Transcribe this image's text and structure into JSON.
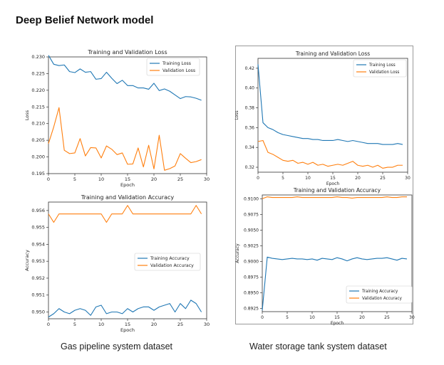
{
  "page": {
    "heading": "Deep Belief Network model",
    "captions": [
      "Gas pipeline system dataset",
      "Water storage tank system dataset"
    ]
  },
  "colors": {
    "training": "#1f77b4",
    "validation": "#ff7f0e",
    "axis": "#333333"
  },
  "chart_data": [
    {
      "id": "gas-loss",
      "type": "line",
      "title": "Training and Validation Loss",
      "xlabel": "Epoch",
      "ylabel": "Loss",
      "xlim": [
        0,
        30
      ],
      "ylim": [
        0.195,
        0.23
      ],
      "xticks": [
        0,
        5,
        10,
        15,
        20,
        25,
        30
      ],
      "yticks": [
        0.195,
        0.2,
        0.205,
        0.21,
        0.215,
        0.22,
        0.225,
        0.23
      ],
      "ytick_labels": [
        "0.195",
        "0.200",
        "0.205",
        "0.210",
        "0.215",
        "0.220",
        "0.225",
        "0.230"
      ],
      "legend": "top-right",
      "grid": false,
      "x": [
        0,
        1,
        2,
        3,
        4,
        5,
        6,
        7,
        8,
        9,
        10,
        11,
        12,
        13,
        14,
        15,
        16,
        17,
        18,
        19,
        20,
        21,
        22,
        23,
        24,
        25,
        26,
        27,
        28,
        29
      ],
      "series": [
        {
          "name": "Training Loss",
          "color": "training",
          "values": [
            0.2305,
            0.2278,
            0.2274,
            0.2276,
            0.2256,
            0.2253,
            0.2264,
            0.2254,
            0.2256,
            0.2233,
            0.2235,
            0.2254,
            0.2236,
            0.222,
            0.223,
            0.2214,
            0.2214,
            0.2207,
            0.2207,
            0.2203,
            0.2221,
            0.2199,
            0.2204,
            0.2197,
            0.2186,
            0.2175,
            0.2181,
            0.218,
            0.2176,
            0.217
          ]
        },
        {
          "name": "Validation Loss",
          "color": "validation",
          "values": [
            0.204,
            0.209,
            0.2148,
            0.202,
            0.201,
            0.2012,
            0.2055,
            0.2003,
            0.2028,
            0.2027,
            0.1997,
            0.2033,
            0.2023,
            0.2007,
            0.2012,
            0.1978,
            0.1979,
            0.2027,
            0.197,
            0.2035,
            0.1964,
            0.2065,
            0.196,
            0.1965,
            0.1973,
            0.201,
            0.1996,
            0.1983,
            0.1986,
            0.1992
          ]
        }
      ]
    },
    {
      "id": "gas-acc",
      "type": "line",
      "title": "Training and Validation Accuracy",
      "xlabel": "Epoch",
      "ylabel": "Accuracy",
      "xlim": [
        0,
        30
      ],
      "ylim": [
        0.9496,
        0.9565
      ],
      "xticks": [
        0,
        5,
        10,
        15,
        20,
        25,
        30
      ],
      "yticks": [
        0.95,
        0.951,
        0.952,
        0.953,
        0.954,
        0.955,
        0.956
      ],
      "ytick_labels": [
        "0.950",
        "0.951",
        "0.952",
        "0.953",
        "0.954",
        "0.955",
        "0.956"
      ],
      "legend": "center-right",
      "grid": false,
      "x": [
        0,
        1,
        2,
        3,
        4,
        5,
        6,
        7,
        8,
        9,
        10,
        11,
        12,
        13,
        14,
        15,
        16,
        17,
        18,
        19,
        20,
        21,
        22,
        23,
        24,
        25,
        26,
        27,
        28,
        29
      ],
      "series": [
        {
          "name": "Training Accuracy",
          "color": "training",
          "values": [
            0.9497,
            0.9499,
            0.9502,
            0.95,
            0.9499,
            0.9501,
            0.9502,
            0.9501,
            0.9498,
            0.9503,
            0.9504,
            0.9499,
            0.95,
            0.95,
            0.9499,
            0.9502,
            0.95,
            0.9502,
            0.9503,
            0.9503,
            0.9501,
            0.9503,
            0.9504,
            0.9505,
            0.95,
            0.9505,
            0.9502,
            0.9507,
            0.9505,
            0.95
          ]
        },
        {
          "name": "Validation Accuracy",
          "color": "validation",
          "values": [
            0.9558,
            0.9553,
            0.9558,
            0.9558,
            0.9558,
            0.9558,
            0.9558,
            0.9558,
            0.9558,
            0.9558,
            0.9558,
            0.9553,
            0.9558,
            0.9558,
            0.9558,
            0.9563,
            0.9558,
            0.9558,
            0.9558,
            0.9558,
            0.9558,
            0.9558,
            0.9558,
            0.9558,
            0.9558,
            0.9558,
            0.9558,
            0.9558,
            0.9563,
            0.9558
          ]
        }
      ]
    },
    {
      "id": "water-loss",
      "type": "line",
      "title": "Training and Validation Loss",
      "xlabel": "Epoch",
      "ylabel": "Loss",
      "xlim": [
        0,
        30
      ],
      "ylim": [
        0.315,
        0.43
      ],
      "xticks": [
        0,
        5,
        10,
        15,
        20,
        25,
        30
      ],
      "yticks": [
        0.32,
        0.34,
        0.36,
        0.38,
        0.4,
        0.42
      ],
      "ytick_labels": [
        "0.32",
        "0.34",
        "0.36",
        "0.38",
        "0.40",
        "0.42"
      ],
      "legend": "top-right",
      "grid": false,
      "x": [
        0,
        1,
        2,
        3,
        4,
        5,
        6,
        7,
        8,
        9,
        10,
        11,
        12,
        13,
        14,
        15,
        16,
        17,
        18,
        19,
        20,
        21,
        22,
        23,
        24,
        25,
        26,
        27,
        28,
        29
      ],
      "series": [
        {
          "name": "Training Loss",
          "color": "training",
          "values": [
            0.424,
            0.365,
            0.36,
            0.358,
            0.355,
            0.353,
            0.352,
            0.351,
            0.35,
            0.349,
            0.349,
            0.348,
            0.348,
            0.347,
            0.347,
            0.347,
            0.348,
            0.347,
            0.346,
            0.347,
            0.346,
            0.345,
            0.344,
            0.344,
            0.344,
            0.343,
            0.343,
            0.343,
            0.344,
            0.343
          ]
        },
        {
          "name": "Validation Loss",
          "color": "validation",
          "values": [
            0.346,
            0.347,
            0.335,
            0.333,
            0.33,
            0.327,
            0.326,
            0.327,
            0.324,
            0.325,
            0.323,
            0.325,
            0.322,
            0.323,
            0.321,
            0.322,
            0.323,
            0.322,
            0.324,
            0.326,
            0.322,
            0.321,
            0.322,
            0.32,
            0.322,
            0.319,
            0.32,
            0.32,
            0.322,
            0.322
          ]
        }
      ]
    },
    {
      "id": "water-acc",
      "type": "line",
      "title": "Training and Validation Accuracy",
      "xlabel": "Epoch",
      "ylabel": "Accuracy",
      "xlim": [
        0,
        30
      ],
      "ylim": [
        0.892,
        0.9106
      ],
      "xticks": [
        0,
        5,
        10,
        15,
        20,
        25,
        30
      ],
      "yticks": [
        0.8925,
        0.895,
        0.8975,
        0.9,
        0.9025,
        0.905,
        0.9075,
        0.91
      ],
      "ytick_labels": [
        "0.8925",
        "0.8950",
        "0.8975",
        "0.9000",
        "0.9025",
        "0.9050",
        "0.9075",
        "0.9100"
      ],
      "legend": "bottom-right",
      "grid": false,
      "x": [
        0,
        1,
        2,
        3,
        4,
        5,
        6,
        7,
        8,
        9,
        10,
        11,
        12,
        13,
        14,
        15,
        16,
        17,
        18,
        19,
        20,
        21,
        22,
        23,
        24,
        25,
        26,
        27,
        28,
        29
      ],
      "series": [
        {
          "name": "Training Accuracy",
          "color": "training",
          "values": [
            0.8922,
            0.9007,
            0.9005,
            0.9004,
            0.9003,
            0.9004,
            0.9005,
            0.9004,
            0.9004,
            0.9003,
            0.9004,
            0.9002,
            0.9005,
            0.9004,
            0.9003,
            0.9006,
            0.9004,
            0.9001,
            0.9004,
            0.9006,
            0.9004,
            0.9003,
            0.9004,
            0.9005,
            0.9005,
            0.9006,
            0.9004,
            0.9002,
            0.9005,
            0.9004
          ]
        },
        {
          "name": "Validation Accuracy",
          "color": "validation",
          "values": [
            0.91,
            0.9103,
            0.9102,
            0.9102,
            0.9102,
            0.9102,
            0.9102,
            0.9103,
            0.9102,
            0.9102,
            0.9102,
            0.9102,
            0.9102,
            0.9102,
            0.9102,
            0.9103,
            0.9102,
            0.9102,
            0.9101,
            0.9102,
            0.9102,
            0.9102,
            0.9102,
            0.9102,
            0.9102,
            0.9103,
            0.9102,
            0.9102,
            0.9103,
            0.9103
          ]
        }
      ]
    }
  ]
}
